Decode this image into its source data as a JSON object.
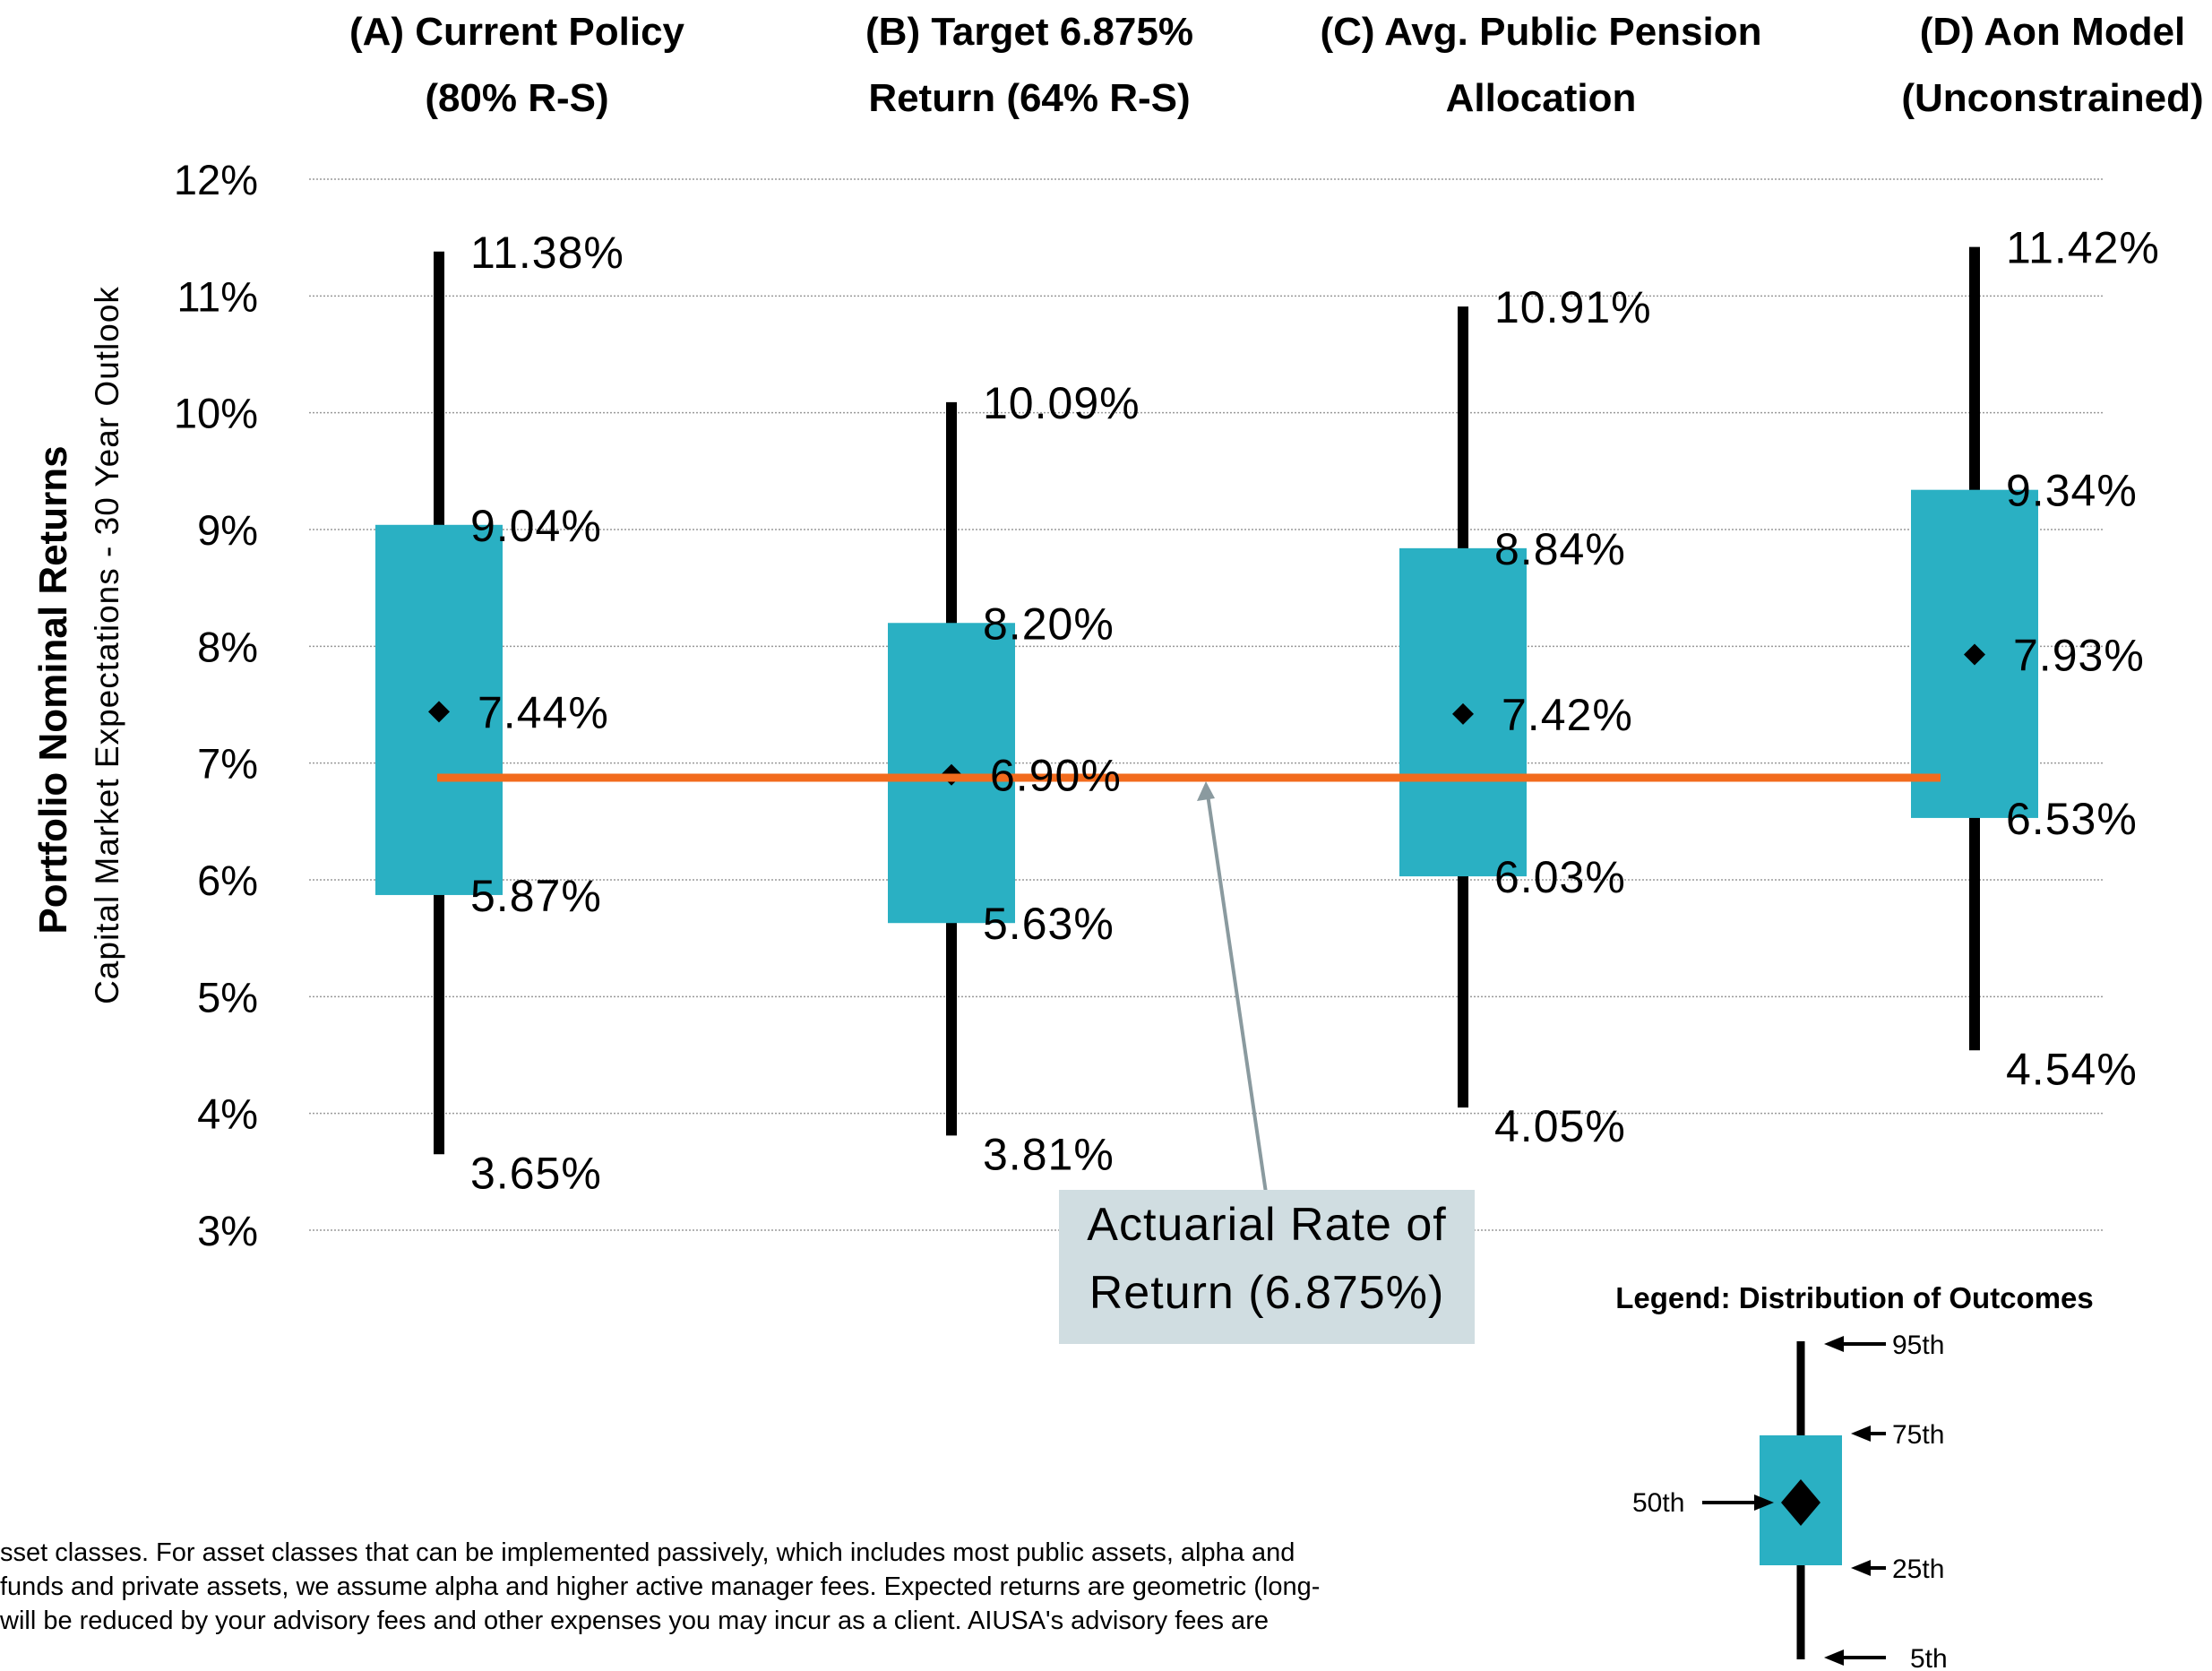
{
  "chart_data": {
    "type": "box",
    "categories": [
      [
        "(A) Current Policy",
        "(80% R-S)"
      ],
      [
        "(B) Target 6.875%",
        "Return (64% R-S)"
      ],
      [
        "(C) Avg. Public Pension",
        "Allocation"
      ],
      [
        "(D) Aon Model",
        "(Unconstrained)"
      ]
    ],
    "series": [
      {
        "p5": 3.65,
        "p25": 5.87,
        "p50": 7.44,
        "p75": 9.04,
        "p95": 11.38,
        "labels": {
          "p5": "3.65%",
          "p25": "5.87%",
          "p50": "7.44%",
          "p75": "9.04%",
          "p95": "11.38%"
        }
      },
      {
        "p5": 3.81,
        "p25": 5.63,
        "p50": 6.9,
        "p75": 8.2,
        "p95": 10.09,
        "labels": {
          "p5": "3.81%",
          "p25": "5.63%",
          "p50": "6.90%",
          "p75": "8.20%",
          "p95": "10.09%"
        }
      },
      {
        "p5": 4.05,
        "p25": 6.03,
        "p50": 7.42,
        "p75": 8.84,
        "p95": 10.91,
        "labels": {
          "p5": "4.05%",
          "p25": "6.03%",
          "p50": "7.42%",
          "p75": "8.84%",
          "p95": "10.91%"
        }
      },
      {
        "p5": 4.54,
        "p25": 6.53,
        "p50": 7.93,
        "p75": 9.34,
        "p95": 11.42,
        "labels": {
          "p5": "4.54%",
          "p25": "6.53%",
          "p50": "7.93%",
          "p75": "9.34%",
          "p95": "11.42%"
        }
      }
    ],
    "ylim": [
      3,
      12
    ],
    "yticks": [
      "3%",
      "4%",
      "5%",
      "6%",
      "7%",
      "8%",
      "9%",
      "10%",
      "11%",
      "12%"
    ],
    "ylabel": "Portfolio Nominal Returns",
    "ylabel_sub": "Capital Market Expectations - 30 Year Outlook",
    "grid": true,
    "reference_line": {
      "value": 6.875,
      "color": "#f26b1d"
    },
    "annotation": [
      "Actuarial Rate of",
      "Return (6.875%)"
    ],
    "legend": {
      "title": "Legend: Distribution of Outcomes",
      "placement": "bottom-right",
      "labels": {
        "p95": "95th",
        "p75": "75th",
        "p50": "50th",
        "p25": "25th",
        "p5": "5th"
      }
    },
    "colors": {
      "box": "#2ab0c3",
      "whisker": "#000000",
      "reference": "#f26b1d",
      "annotation_bg": "#d0dde1",
      "arrow": "#8a9a9f",
      "grid": "#9a9a9a"
    }
  },
  "footnote": [
    "sset classes. For asset classes that can be implemented passively, which includes most public assets, alpha and",
    "funds and private assets, we assume alpha and higher active manager fees. Expected returns are geometric (long-",
    "will be reduced by your advisory fees and other expenses you may incur as a client. AIUSA's advisory fees are"
  ]
}
